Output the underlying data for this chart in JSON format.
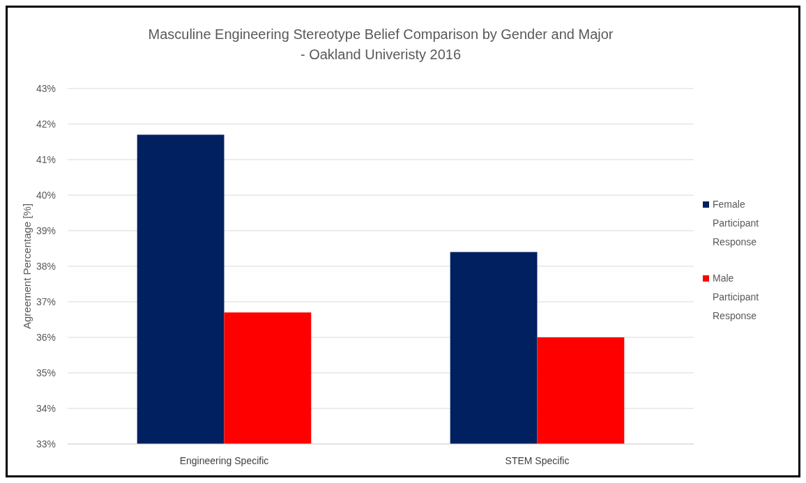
{
  "chart_data": {
    "type": "bar",
    "title": "Masculine Engineering Stereotype Belief Comparison by Gender and Major - Oakland Univeristy 2016",
    "ylabel": "Agreement Percentage [%]",
    "categories": [
      "Engineering Specific",
      "STEM Specific"
    ],
    "series": [
      {
        "name": "Female Participant Response",
        "color": "#002060",
        "values": [
          41.7,
          38.4
        ]
      },
      {
        "name": "Male Participant Response",
        "color": "#ff0000",
        "values": [
          36.7,
          36.0
        ]
      }
    ],
    "ylim": [
      33,
      43
    ],
    "yticks": [
      {
        "value": 33,
        "label": "33%"
      },
      {
        "value": 34,
        "label": "34%"
      },
      {
        "value": 35,
        "label": "35%"
      },
      {
        "value": 36,
        "label": "36%"
      },
      {
        "value": 37,
        "label": "37%"
      },
      {
        "value": 38,
        "label": "38%"
      },
      {
        "value": 39,
        "label": "39%"
      },
      {
        "value": 40,
        "label": "40%"
      },
      {
        "value": 41,
        "label": "41%"
      },
      {
        "value": 42,
        "label": "42%"
      },
      {
        "value": 43,
        "label": "43%"
      }
    ],
    "grid": "y",
    "legend": "right"
  }
}
